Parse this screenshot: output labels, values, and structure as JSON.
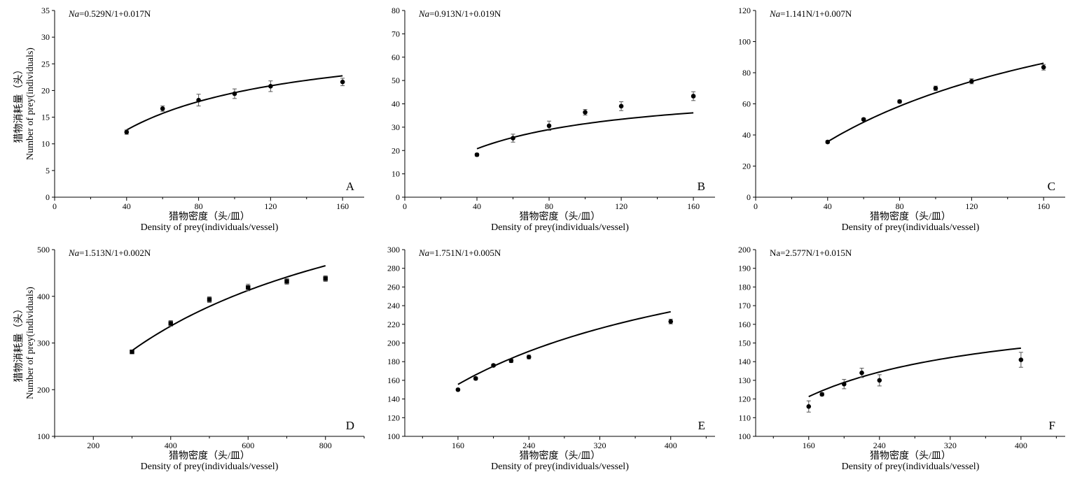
{
  "figure": {
    "xlabel_cn": "猎物密度（头/皿）",
    "xlabel_en": "Density of prey(individuals/vessel)",
    "ylabel_cn": "猎物消耗量（头）",
    "ylabel_en": "Number of prey(individuals)"
  },
  "chart_data": [
    {
      "type": "scatter",
      "panel": "A",
      "equation_sym": "Na",
      "equation_sym_italic": true,
      "equation_rest": "=0.529N/1+0.017N",
      "marker": "circle",
      "show_ylabel": true,
      "xlim": [
        0,
        172
      ],
      "ylim": [
        0,
        35
      ],
      "xticks": [
        0,
        40,
        80,
        120,
        160
      ],
      "yticks": [
        0,
        5,
        10,
        15,
        20,
        25,
        30,
        35
      ],
      "x": [
        40,
        60,
        80,
        100,
        120,
        160
      ],
      "y": [
        12.2,
        16.6,
        18.2,
        19.4,
        20.8,
        21.6
      ],
      "err": [
        0.4,
        0.5,
        1.1,
        0.9,
        1.0,
        0.7
      ],
      "fit": {
        "a": 0.529,
        "b": 0.017,
        "x_range": [
          40,
          160
        ]
      }
    },
    {
      "type": "scatter",
      "panel": "B",
      "equation_sym": "Na",
      "equation_sym_italic": true,
      "equation_rest": "=0.913N/1+0.019N",
      "marker": "circle",
      "show_ylabel": false,
      "xlim": [
        0,
        172
      ],
      "ylim": [
        0,
        80
      ],
      "xticks": [
        0,
        40,
        80,
        120,
        160
      ],
      "yticks": [
        0,
        10,
        20,
        30,
        40,
        50,
        60,
        70,
        80
      ],
      "x": [
        40,
        60,
        80,
        100,
        120,
        160
      ],
      "y": [
        18.2,
        25.3,
        30.6,
        36.4,
        39.0,
        43.3
      ],
      "err": [
        0.6,
        1.7,
        2.0,
        1.2,
        1.9,
        1.9
      ],
      "fit": {
        "a": 0.913,
        "b": 0.019,
        "x_range": [
          40,
          160
        ]
      }
    },
    {
      "type": "scatter",
      "panel": "C",
      "equation_sym": "Na",
      "equation_sym_italic": true,
      "equation_rest": "=1.141N/1+0.007N",
      "marker": "circle",
      "show_ylabel": false,
      "xlim": [
        0,
        172
      ],
      "ylim": [
        0,
        120
      ],
      "xticks": [
        0,
        40,
        80,
        120,
        160
      ],
      "yticks": [
        0,
        20,
        40,
        60,
        80,
        100,
        120
      ],
      "x": [
        40,
        60,
        80,
        100,
        120,
        160
      ],
      "y": [
        35.5,
        50.0,
        61.5,
        70.0,
        74.5,
        83.5
      ],
      "err": [
        0.8,
        0.8,
        1.0,
        1.4,
        1.6,
        1.8
      ],
      "fit": {
        "a": 1.141,
        "b": 0.007,
        "x_range": [
          40,
          160
        ]
      }
    },
    {
      "type": "scatter",
      "panel": "D",
      "equation_sym": "Na",
      "equation_sym_italic": true,
      "equation_rest": "=1.513N/1+0.002N",
      "marker": "square",
      "show_ylabel": true,
      "xlim": [
        100,
        900
      ],
      "ylim": [
        100,
        500
      ],
      "xticks": [
        200,
        400,
        600,
        800
      ],
      "yticks": [
        100,
        200,
        300,
        400,
        500
      ],
      "x": [
        300,
        400,
        500,
        600,
        700,
        800
      ],
      "y": [
        281,
        342,
        393,
        419,
        432,
        438
      ],
      "err": [
        3,
        6,
        6,
        7,
        6,
        6
      ],
      "fit": {
        "a": 1.513,
        "b": 0.002,
        "x_range": [
          300,
          800
        ]
      }
    },
    {
      "type": "scatter",
      "panel": "E",
      "equation_sym": "Na",
      "equation_sym_italic": true,
      "equation_rest": "=1.751N/1+0.005N",
      "marker": "circle",
      "show_ylabel": false,
      "xlim": [
        100,
        450
      ],
      "ylim": [
        100,
        300
      ],
      "xticks": [
        160,
        240,
        320,
        400
      ],
      "yticks": [
        100,
        120,
        140,
        160,
        180,
        200,
        220,
        240,
        260,
        280,
        300
      ],
      "x": [
        160,
        180,
        200,
        220,
        240,
        400
      ],
      "y": [
        150,
        162,
        176,
        181,
        185,
        223
      ],
      "err": [
        1.0,
        1.5,
        1.5,
        2.0,
        2.0,
        2.5
      ],
      "fit": {
        "a": 1.751,
        "b": 0.005,
        "x_range": [
          160,
          400
        ]
      }
    },
    {
      "type": "scatter",
      "panel": "F",
      "equation_sym": "Na",
      "equation_sym_italic": false,
      "equation_rest": "=2.577N/1+0.015N",
      "marker": "circle",
      "show_ylabel": false,
      "xlim": [
        100,
        450
      ],
      "ylim": [
        100,
        200
      ],
      "xticks": [
        160,
        240,
        320,
        400
      ],
      "yticks": [
        100,
        110,
        120,
        130,
        140,
        150,
        160,
        170,
        180,
        190,
        200
      ],
      "x": [
        160,
        175,
        200,
        220,
        240,
        400
      ],
      "y": [
        116,
        122.5,
        128,
        134,
        130,
        141
      ],
      "err": [
        3.0,
        0.8,
        2.5,
        2.5,
        3.0,
        4.0
      ],
      "fit": {
        "a": 2.577,
        "b": 0.015,
        "x_range": [
          160,
          400
        ]
      }
    }
  ]
}
